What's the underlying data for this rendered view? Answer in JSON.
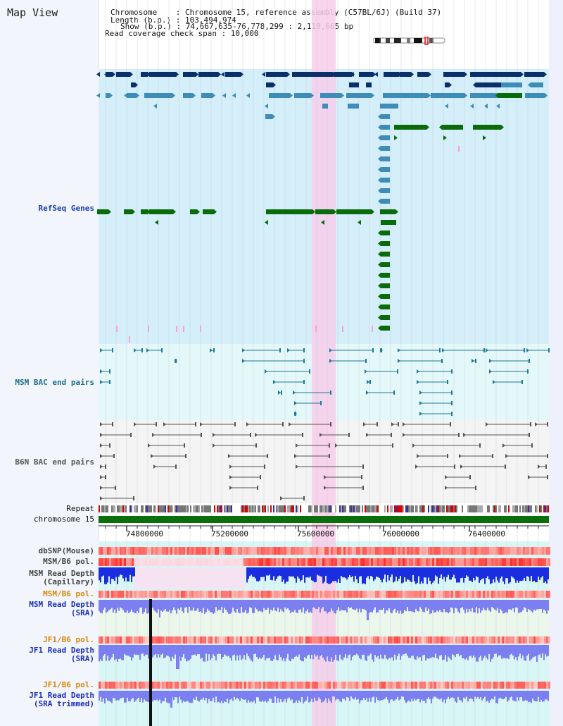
{
  "header": {
    "title": "Map View",
    "info_lines": [
      "Chromosome    : Chromosome 15, reference assembly (C57BL/6J) (Build 37)",
      "Length (b.p.) : 103,494,974",
      "Show (b.p.) : 74,667,635-76,778,299 : 2,110,665 bp",
      "Read coverage check span : 10,000"
    ]
  },
  "tracks": {
    "refseq": "RefSeq Genes",
    "msm_bac": "MSM BAC end pairs",
    "b6n_bac": "B6N BAC end pairs",
    "repeat": "Repeat",
    "chromosome": "chromosome 15",
    "dbsnp": "dbSNP(Mouse)",
    "msm_b6_pol": "MSM/B6 pol.",
    "msm_read_depth_cap": "MSM Read Depth\n(Capillary)",
    "msm_b6_pol_2": "MSM/B6 pol.",
    "msm_read_depth_sra": "MSM Read Depth\n(SRA)",
    "jf1_b6_pol": "JF1/B6 pol.",
    "jf1_read_depth_sra": "JF1 Read Depth\n(SRA)",
    "jf1_b6_pol_2": "JF1/B6 pol.",
    "jf1_read_depth_trimmed": "JF1 Read Depth\n(SRA trimmed)"
  },
  "axis": {
    "ticks": [
      "74800000",
      "75200000",
      "75600000",
      "76000000",
      "76400000"
    ]
  },
  "colors": {
    "gene_dark": "#0b2f6b",
    "gene_mid": "#3e8db8",
    "gene_green": "#0a6b0a",
    "msm_bac": "#1c7a9a",
    "b6n_bac": "#555555",
    "highlight": "#f7cdea",
    "depth_blue": "#1a2ee0",
    "depth_light": "#7b7ff0"
  }
}
